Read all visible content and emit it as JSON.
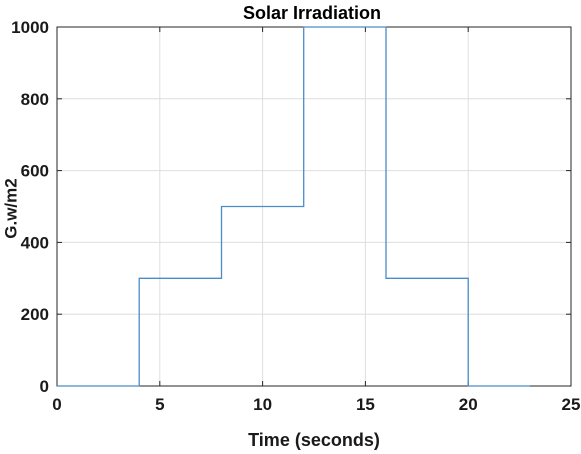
{
  "chart_data": {
    "type": "line",
    "title": "Solar Irradiation",
    "xlabel": "Time (seconds)",
    "ylabel": "G.w/m2",
    "xlim": [
      0,
      25
    ],
    "ylim": [
      0,
      1000
    ],
    "grid": true,
    "x_ticks": [
      "0",
      "5",
      "10",
      "15",
      "20",
      "25"
    ],
    "y_ticks": [
      "0",
      "200",
      "400",
      "600",
      "800",
      "1000"
    ],
    "series": [
      {
        "color": "#4a8cc8",
        "points": [
          [
            0,
            0
          ],
          [
            4,
            0
          ],
          [
            4,
            300
          ],
          [
            8,
            300
          ],
          [
            8,
            500
          ],
          [
            12,
            500
          ],
          [
            12,
            1000
          ],
          [
            16,
            1000
          ],
          [
            16,
            300
          ],
          [
            20,
            300
          ],
          [
            20,
            0
          ],
          [
            23,
            0
          ]
        ]
      }
    ]
  }
}
